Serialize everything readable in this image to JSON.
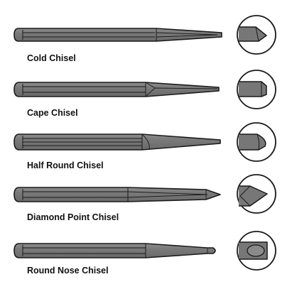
{
  "chisels": [
    {
      "label": "Cold Chisel"
    },
    {
      "label": "Cape Chisel"
    },
    {
      "label": "Half Round Chisel"
    },
    {
      "label": "Diamond Point Chisel"
    },
    {
      "label": "Round Nose Chisel"
    }
  ],
  "colors": {
    "body": "#7a7a7a",
    "tip": "#6e6e6e",
    "outline": "#1a1a1a",
    "highlight": "#a9a9a9",
    "circle_fill": "#ffffff"
  }
}
